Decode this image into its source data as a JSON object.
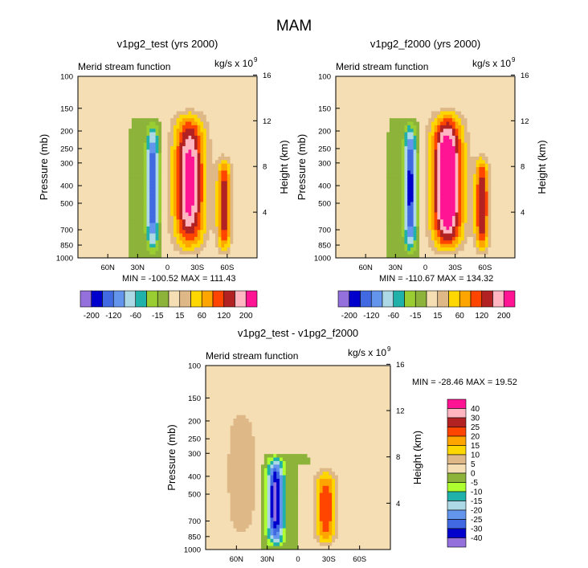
{
  "figure_title": "MAM",
  "chart_data": [
    {
      "type": "heatmap",
      "title": "v1pg2_test (yrs 2000)",
      "subtitle_left": "Merid stream function",
      "units_label": "kg/s x 10",
      "units_exp": "9",
      "ylabel": "Pressure (mb)",
      "ylabel_right": "Height (km)",
      "x_ticks": [
        "60N",
        "30N",
        "0",
        "30S",
        "60S"
      ],
      "x_tick_values": [
        60,
        30,
        0,
        -30,
        -60
      ],
      "x_range": [
        90,
        -90
      ],
      "y_ticks": [
        "100",
        "150",
        "200",
        "250",
        "300",
        "400",
        "500",
        "700",
        "850",
        "1000"
      ],
      "y_tick_values": [
        100,
        150,
        200,
        250,
        300,
        400,
        500,
        700,
        850,
        1000
      ],
      "y_range": [
        100,
        1000
      ],
      "right_ticks": [
        "16",
        "12",
        "8",
        "4"
      ],
      "right_tick_values": [
        16,
        12,
        8,
        4
      ],
      "stats": "MIN = -100.52  MAX = 111.43",
      "cells": [
        {
          "lat": -22,
          "half_width": 18,
          "top": 145,
          "strength": 1.0
        },
        {
          "lat": 15,
          "half_width": 7,
          "top": 170,
          "strength": -0.8
        },
        {
          "lat": -57,
          "half_width": 8,
          "top": 260,
          "strength": 0.75
        }
      ]
    },
    {
      "type": "heatmap",
      "title": "v1pg2_f2000 (yrs 2000)",
      "subtitle_left": "Merid stream function",
      "units_label": "kg/s x 10",
      "units_exp": "9",
      "ylabel": "Pressure (mb)",
      "ylabel_right": "Height (km)",
      "x_ticks": [
        "60N",
        "30N",
        "0",
        "30S",
        "60S"
      ],
      "x_tick_values": [
        60,
        30,
        0,
        -30,
        -60
      ],
      "x_range": [
        90,
        -90
      ],
      "y_ticks": [
        "100",
        "150",
        "200",
        "250",
        "300",
        "400",
        "500",
        "700",
        "850",
        "1000"
      ],
      "y_tick_values": [
        100,
        150,
        200,
        250,
        300,
        400,
        500,
        700,
        850,
        1000
      ],
      "y_range": [
        100,
        1000
      ],
      "right_ticks": [
        "16",
        "12",
        "8",
        "4"
      ],
      "right_tick_values": [
        16,
        12,
        8,
        4
      ],
      "stats": "MIN = -110.67  MAX = 134.32",
      "cells": [
        {
          "lat": -22,
          "half_width": 18,
          "top": 145,
          "strength": 1.2
        },
        {
          "lat": 15,
          "half_width": 7,
          "top": 170,
          "strength": -0.85
        },
        {
          "lat": -57,
          "half_width": 8,
          "top": 260,
          "strength": 0.8
        }
      ]
    },
    {
      "type": "heatmap",
      "title": "v1pg2_test - v1pg2_f2000",
      "subtitle_left": "Merid stream function",
      "units_label": "kg/s x 10",
      "units_exp": "9",
      "ylabel": "Pressure (mb)",
      "ylabel_right": "Height (km)",
      "x_ticks": [
        "60N",
        "30N",
        "0",
        "30S",
        "60S"
      ],
      "x_tick_values": [
        60,
        30,
        0,
        -30,
        -60
      ],
      "x_range": [
        90,
        -90
      ],
      "y_ticks": [
        "100",
        "150",
        "200",
        "250",
        "300",
        "400",
        "500",
        "700",
        "850",
        "1000"
      ],
      "y_tick_values": [
        100,
        150,
        200,
        250,
        300,
        400,
        500,
        700,
        850,
        1000
      ],
      "y_range": [
        100,
        1000
      ],
      "right_ticks": [
        "16",
        "12",
        "8",
        "4"
      ],
      "right_tick_values": [
        16,
        12,
        8,
        4
      ],
      "stats": "MIN = -28.46  MAX = 19.52",
      "cells": [
        {
          "lat": 22,
          "half_width": 9,
          "top": 300,
          "strength": -1.0
        },
        {
          "lat": -27,
          "half_width": 12,
          "top": 350,
          "strength": 0.65
        },
        {
          "lat": 55,
          "half_width": 18,
          "top": 150,
          "strength": 0.25
        }
      ]
    }
  ],
  "colorbar_main": {
    "labels": [
      "-200",
      "-120",
      "-60",
      "-15",
      "15",
      "60",
      "120",
      "200"
    ],
    "colors": [
      "#9370db",
      "#0000cd",
      "#4169e1",
      "#6495ed",
      "#add8e6",
      "#20b2aa",
      "#9acd32",
      "#8db33a",
      "#f5deb3",
      "#deb887",
      "#ffd700",
      "#ffa500",
      "#ff4500",
      "#b22222",
      "#ffb6c1",
      "#ff1493"
    ]
  },
  "colorbar_diff": {
    "labels": [
      "40",
      "30",
      "25",
      "20",
      "15",
      "10",
      "5",
      "0",
      "-5",
      "-10",
      "-15",
      "-20",
      "-25",
      "-30",
      "-40"
    ],
    "colors": [
      "#ff1493",
      "#ffb6c1",
      "#b22222",
      "#ff4500",
      "#ffa500",
      "#ffd700",
      "#deb887",
      "#f5deb3",
      "#8db33a",
      "#adff2f",
      "#20b2aa",
      "#add8e6",
      "#6495ed",
      "#4169e1",
      "#0000cd",
      "#9370db"
    ]
  }
}
